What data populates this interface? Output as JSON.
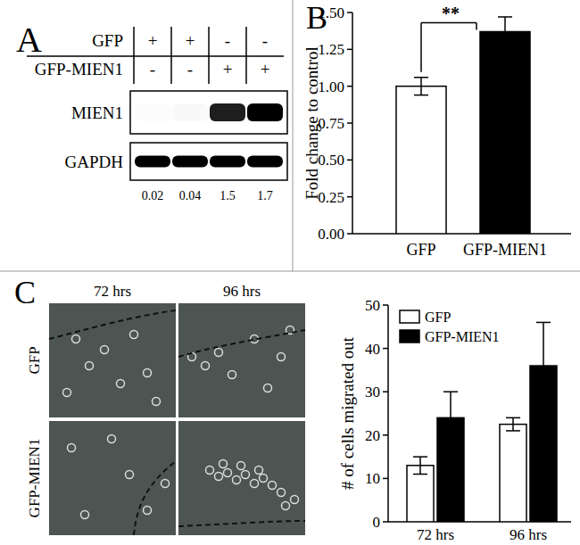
{
  "panel_labels": [
    "A",
    "B",
    "C"
  ],
  "blot": {
    "conditions": [
      {
        "label": "GFP",
        "signs": [
          "+",
          "+",
          "-",
          "-"
        ]
      },
      {
        "label": "GFP-MIEN1",
        "signs": [
          "-",
          "-",
          "+",
          "+"
        ]
      }
    ],
    "proteins": [
      "MIEN1",
      "GAPDH"
    ],
    "values": [
      0.02,
      0.04,
      1.5,
      1.7
    ]
  },
  "micrographs": {
    "columns": [
      "72 hrs",
      "96 hrs"
    ],
    "rows": [
      "GFP",
      "GFP-MIEN1"
    ]
  },
  "chart_data": [
    {
      "type": "bar",
      "y_label": "Fold change to control",
      "categories": [
        "GFP",
        "GFP-MIEN1"
      ],
      "values": [
        1.0,
        1.37
      ],
      "errors": [
        0.06,
        0.1
      ],
      "colors": [
        "#ffffff",
        "#000000"
      ],
      "ylim": [
        0,
        1.5
      ],
      "yticks": [
        {
          "value": 0,
          "label": "0.00"
        },
        {
          "value": 0.25,
          "label": "0.25"
        },
        {
          "value": 0.5,
          "label": "0.50"
        },
        {
          "value": 0.75,
          "label": "0.75"
        },
        {
          "value": 1,
          "label": "1.00"
        },
        {
          "value": 1.25,
          "label": "1.25"
        },
        {
          "value": 1.5,
          "label": "1.50"
        }
      ],
      "annotations": [
        "**"
      ]
    },
    {
      "type": "bar",
      "y_label": "# of cells migrated out",
      "categories": [
        "72 hrs",
        "96 hrs"
      ],
      "series": [
        {
          "name": "GFP",
          "color": "#ffffff",
          "values": [
            13,
            22.5
          ],
          "errors": [
            2,
            1.5
          ]
        },
        {
          "name": "GFP-MIEN1",
          "color": "#000000",
          "values": [
            24,
            36
          ],
          "errors": [
            6,
            10
          ]
        }
      ],
      "ylim": [
        0,
        50
      ],
      "yticks": [
        0,
        10,
        20,
        30,
        40,
        50
      ],
      "legend": "upper left"
    }
  ]
}
